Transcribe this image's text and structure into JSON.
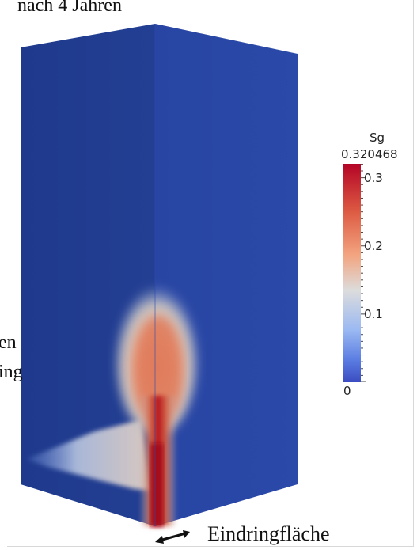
{
  "image": {
    "title": "nach 4 Jahren",
    "side_text_line1": "en",
    "side_text_line2": "ing",
    "bottom_label": "Eindringfläche"
  },
  "legend": {
    "variable": "Sg",
    "max_label": "0.320468",
    "ticks": [
      {
        "label": "0.3",
        "value": 0.3
      },
      {
        "label": "0.2",
        "value": 0.2
      },
      {
        "label": "0.1",
        "value": 0.1
      },
      {
        "label": "0",
        "value": 0
      }
    ],
    "min_value": 0,
    "max_value": 0.320468,
    "colors": {
      "low": "#3b4cc0",
      "mid": "#dcdcdc",
      "high": "#b40426",
      "block": "#24408f"
    }
  }
}
